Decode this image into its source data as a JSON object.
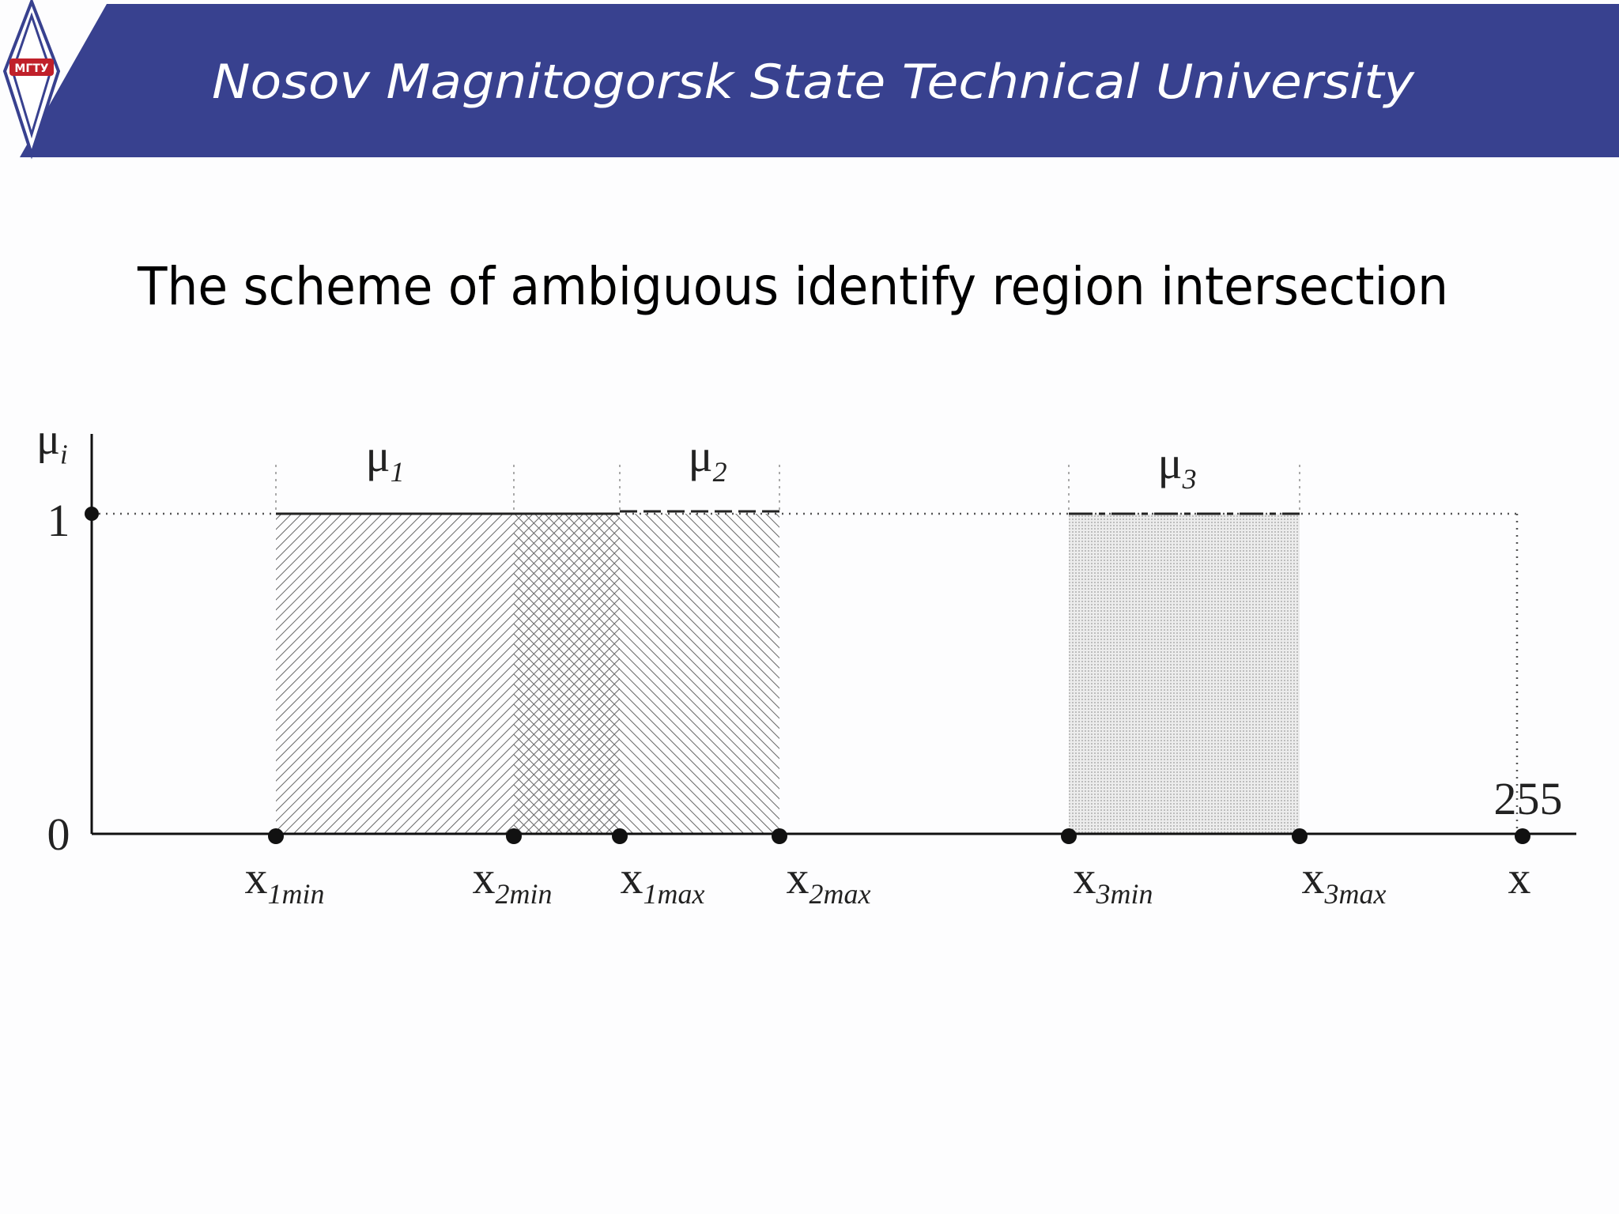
{
  "header": {
    "title": "Nosov Magnitogorsk State Technical University",
    "logo_text": "МГТУ"
  },
  "slide": {
    "title": "The scheme of ambiguous identify region intersection"
  },
  "diagram": {
    "y_axis_label": {
      "base": "μ",
      "sub": "i"
    },
    "y_labels": [
      "1",
      "0"
    ],
    "end_label": "255",
    "region_labels": [
      {
        "base": "μ",
        "sub": "1"
      },
      {
        "base": "μ",
        "sub": "2"
      },
      {
        "base": "μ",
        "sub": "3"
      }
    ],
    "x_labels": [
      {
        "base": "x",
        "sub": "1min"
      },
      {
        "base": "x",
        "sub": "2min"
      },
      {
        "base": "x",
        "sub": "1max"
      },
      {
        "base": "x",
        "sub": "2max"
      },
      {
        "base": "x",
        "sub": "3min"
      },
      {
        "base": "x",
        "sub": "3max"
      },
      {
        "base": "x",
        "sub": null
      }
    ]
  }
}
